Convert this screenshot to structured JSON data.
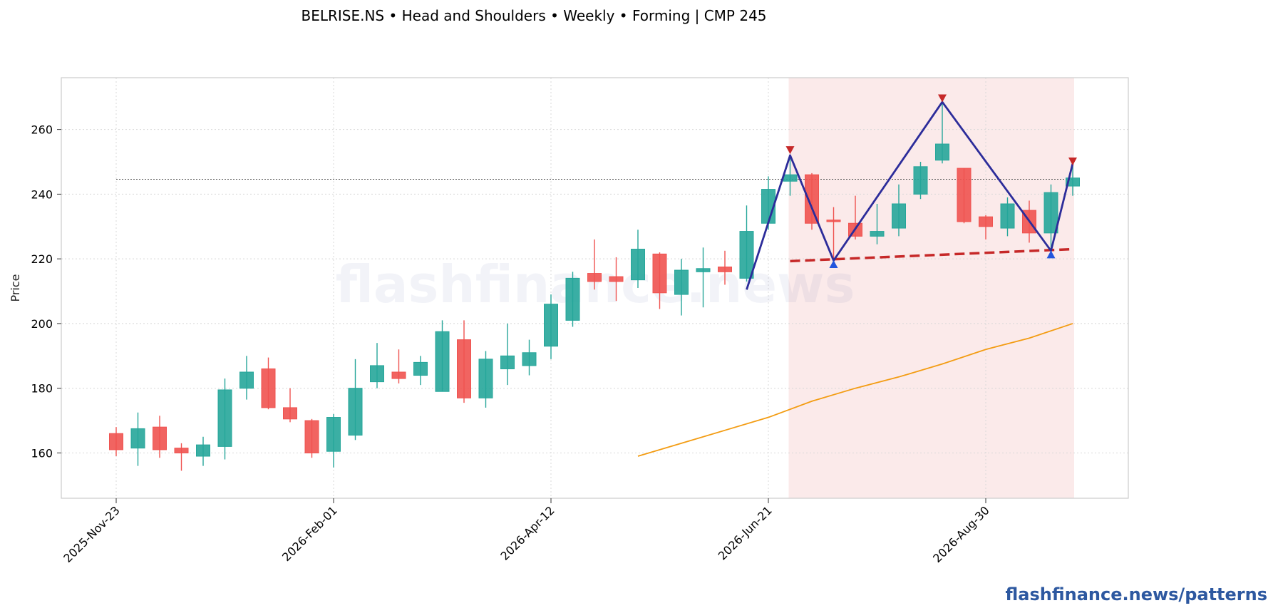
{
  "chart_data": {
    "type": "candlestick",
    "title": "BELRISE.NS  •  Head and Shoulders  •  Weekly  •  Forming  |  CMP 245",
    "ylabel": "Price",
    "xlabel": "",
    "ylim": [
      146,
      276
    ],
    "yticks": [
      160,
      180,
      200,
      220,
      240,
      260
    ],
    "x_tick_labels": [
      "2025-Nov-23",
      "2026-Feb-01",
      "2026-Apr-12",
      "2026-Jun-21",
      "2026-Aug-30"
    ],
    "x_tick_weeks": [
      0,
      10,
      20,
      30,
      40
    ],
    "grid": true,
    "watermark": "flashfinance.news",
    "footer": "flashfinance.news/patterns",
    "colors": {
      "up": "#26a69a",
      "down": "#ef5350",
      "ma": "#f39c12",
      "pattern": "#2c2c9a",
      "neckline": "#c62828",
      "zone": "#fbeaea",
      "peak_marker": "#c62828",
      "trough_marker": "#2255dd"
    },
    "candles": [
      {
        "date": "2025-Nov-23",
        "open": 166.0,
        "high": 168.0,
        "low": 159.0,
        "close": 161.0
      },
      {
        "date": "2025-Nov-30",
        "open": 161.5,
        "high": 172.5,
        "low": 156.0,
        "close": 167.5
      },
      {
        "date": "2025-Dec-07",
        "open": 168.0,
        "high": 171.5,
        "low": 158.5,
        "close": 161.0
      },
      {
        "date": "2025-Dec-14",
        "open": 161.5,
        "high": 163.0,
        "low": 154.5,
        "close": 160.0
      },
      {
        "date": "2025-Dec-21",
        "open": 159.0,
        "high": 165.0,
        "low": 156.0,
        "close": 162.5
      },
      {
        "date": "2025-Dec-28",
        "open": 162.0,
        "high": 183.0,
        "low": 158.0,
        "close": 179.5
      },
      {
        "date": "2026-Jan-04",
        "open": 180.0,
        "high": 190.0,
        "low": 176.5,
        "close": 185.0
      },
      {
        "date": "2026-Jan-11",
        "open": 186.0,
        "high": 189.5,
        "low": 173.5,
        "close": 174.0
      },
      {
        "date": "2026-Jan-18",
        "open": 174.0,
        "high": 180.0,
        "low": 169.5,
        "close": 170.5
      },
      {
        "date": "2026-Jan-25",
        "open": 170.0,
        "high": 170.5,
        "low": 158.5,
        "close": 160.0
      },
      {
        "date": "2026-Feb-01",
        "open": 160.5,
        "high": 172.0,
        "low": 155.5,
        "close": 171.0
      },
      {
        "date": "2026-Feb-08",
        "open": 165.5,
        "high": 189.0,
        "low": 164.0,
        "close": 180.0
      },
      {
        "date": "2026-Feb-15",
        "open": 182.0,
        "high": 194.0,
        "low": 180.0,
        "close": 187.0
      },
      {
        "date": "2026-Feb-22",
        "open": 185.0,
        "high": 192.0,
        "low": 181.5,
        "close": 183.0
      },
      {
        "date": "2026-Mar-01",
        "open": 184.0,
        "high": 190.0,
        "low": 181.0,
        "close": 188.0
      },
      {
        "date": "2026-Mar-08",
        "open": 179.0,
        "high": 201.0,
        "low": 179.0,
        "close": 197.5
      },
      {
        "date": "2026-Mar-15",
        "open": 195.0,
        "high": 201.0,
        "low": 175.5,
        "close": 177.0
      },
      {
        "date": "2026-Mar-22",
        "open": 177.0,
        "high": 191.5,
        "low": 174.0,
        "close": 189.0
      },
      {
        "date": "2026-Mar-29",
        "open": 186.0,
        "high": 200.0,
        "low": 181.0,
        "close": 190.0
      },
      {
        "date": "2026-Apr-05",
        "open": 187.0,
        "high": 195.0,
        "low": 184.0,
        "close": 191.0
      },
      {
        "date": "2026-Apr-12",
        "open": 193.0,
        "high": 209.0,
        "low": 189.0,
        "close": 206.0
      },
      {
        "date": "2026-Apr-19",
        "open": 201.0,
        "high": 216.0,
        "low": 199.0,
        "close": 214.0
      },
      {
        "date": "2026-Apr-26",
        "open": 215.5,
        "high": 226.0,
        "low": 210.5,
        "close": 213.0
      },
      {
        "date": "2026-May-03",
        "open": 214.5,
        "high": 220.5,
        "low": 207.0,
        "close": 213.0
      },
      {
        "date": "2026-May-10",
        "open": 213.5,
        "high": 229.0,
        "low": 211.0,
        "close": 223.0
      },
      {
        "date": "2026-May-17",
        "open": 221.5,
        "high": 222.0,
        "low": 204.5,
        "close": 209.5
      },
      {
        "date": "2026-May-24",
        "open": 209.0,
        "high": 220.0,
        "low": 202.5,
        "close": 216.5
      },
      {
        "date": "2026-May-31",
        "open": 216.0,
        "high": 223.5,
        "low": 205.0,
        "close": 217.0
      },
      {
        "date": "2026-Jun-07",
        "open": 217.5,
        "high": 222.5,
        "low": 212.0,
        "close": 216.0
      },
      {
        "date": "2026-Jun-14",
        "open": 214.0,
        "high": 236.5,
        "low": 213.0,
        "close": 228.5
      },
      {
        "date": "2026-Jun-21",
        "open": 231.0,
        "high": 245.5,
        "low": 229.0,
        "close": 241.5
      },
      {
        "date": "2026-Jun-28",
        "open": 244.0,
        "high": 252.0,
        "low": 239.5,
        "close": 246.0
      },
      {
        "date": "2026-Jul-05",
        "open": 246.0,
        "high": 246.5,
        "low": 229.0,
        "close": 231.0
      },
      {
        "date": "2026-Jul-12",
        "open": 232.0,
        "high": 236.0,
        "low": 219.0,
        "close": 231.5
      },
      {
        "date": "2026-Jul-19",
        "open": 231.0,
        "high": 239.5,
        "low": 226.0,
        "close": 227.0
      },
      {
        "date": "2026-Jul-26",
        "open": 227.0,
        "high": 237.0,
        "low": 224.5,
        "close": 228.5
      },
      {
        "date": "2026-Aug-02",
        "open": 229.5,
        "high": 243.0,
        "low": 227.0,
        "close": 237.0
      },
      {
        "date": "2026-Aug-09",
        "open": 240.0,
        "high": 250.0,
        "low": 238.5,
        "close": 248.5
      },
      {
        "date": "2026-Aug-16",
        "open": 250.5,
        "high": 268.0,
        "low": 249.5,
        "close": 255.5
      },
      {
        "date": "2026-Aug-23",
        "open": 248.0,
        "high": 248.0,
        "low": 231.0,
        "close": 231.5
      },
      {
        "date": "2026-Aug-30",
        "open": 233.0,
        "high": 233.5,
        "low": 226.0,
        "close": 230.0
      },
      {
        "date": "2026-Sep-06",
        "open": 229.5,
        "high": 239.0,
        "low": 227.0,
        "close": 237.0
      },
      {
        "date": "2026-Sep-13",
        "open": 235.0,
        "high": 238.0,
        "low": 225.0,
        "close": 228.0
      },
      {
        "date": "2026-Sep-20",
        "open": 228.0,
        "high": 243.0,
        "low": 222.5,
        "close": 240.5
      },
      {
        "date": "2026-Sep-27",
        "open": 242.5,
        "high": 249.0,
        "low": 239.5,
        "close": 245.0
      }
    ],
    "moving_average": {
      "weeks": [
        24,
        26,
        28,
        30,
        32,
        34,
        36,
        38,
        40,
        42,
        44
      ],
      "values": [
        159.0,
        163.0,
        167.0,
        171.0,
        176.0,
        180.0,
        183.5,
        187.5,
        192.0,
        195.5,
        200.0
      ]
    },
    "cmp_line": {
      "value": 244.6,
      "from_week": 0,
      "to_week": 44
    },
    "pattern_zone": {
      "from_week": 31,
      "to_week": 44
    },
    "neckline": {
      "from_week": 31,
      "from_value": 219.3,
      "to_week": 44,
      "to_value": 223.0
    },
    "pattern_path": {
      "weeks": [
        29,
        31,
        33,
        38,
        43,
        44
      ],
      "values": [
        210.5,
        252.0,
        219.5,
        268.5,
        222.5,
        249.5
      ]
    },
    "peak_markers": [
      {
        "week": 31,
        "value": 253.5
      },
      {
        "week": 38,
        "value": 269.5
      },
      {
        "week": 44,
        "value": 250.0
      }
    ],
    "trough_markers": [
      {
        "week": 33,
        "value": 218.5
      },
      {
        "week": 43,
        "value": 221.5
      }
    ]
  }
}
